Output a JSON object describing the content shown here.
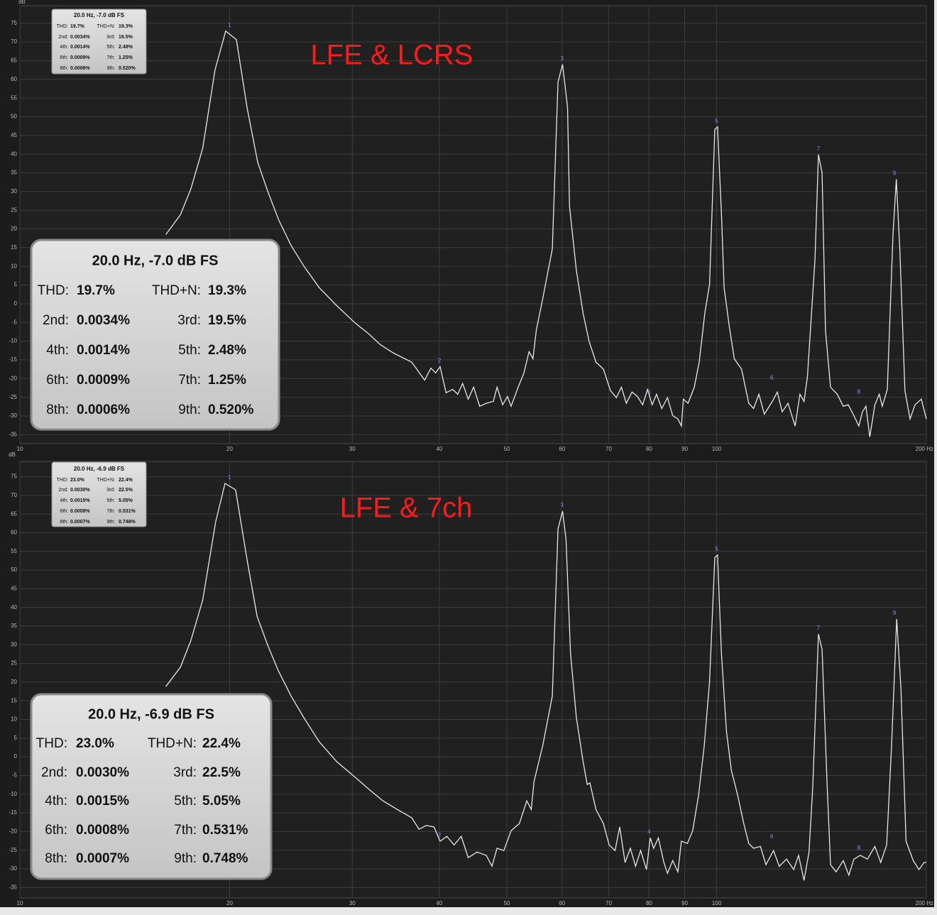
{
  "chart_data": [
    {
      "type": "line",
      "title": "LFE & LCRS",
      "title_color": "#ff1a1a",
      "y_label": "dB",
      "xscale": "log",
      "xlim": [
        10,
        200
      ],
      "ylim": [
        -37.4,
        79.7
      ],
      "grid": true,
      "xticks": [
        10,
        20,
        30,
        40,
        50,
        60,
        70,
        80,
        90,
        100,
        {
          "value": 200,
          "label": "200 Hz"
        }
      ],
      "yticks": [
        -35,
        -30,
        -25,
        -20,
        -15,
        -10,
        -5,
        0,
        5,
        10,
        15,
        20,
        25,
        30,
        35,
        40,
        45,
        50,
        55,
        60,
        65,
        70,
        75
      ],
      "x": [
        16.2,
        17.0,
        17.6,
        18.3,
        19.06,
        19.74,
        20.45,
        21.2,
        21.95,
        22.7,
        23.5,
        24.5,
        25.6,
        26.9,
        28.5,
        30.3,
        31.7,
        32.9,
        34.4,
        36.5,
        38.1,
        38.9,
        39.5,
        40.1,
        40.9,
        41.8,
        42.5,
        43.2,
        44.0,
        44.8,
        45.7,
        46.7,
        47.8,
        48.4,
        49.3,
        50.1,
        50.7,
        51.9,
        52.9,
        53.8,
        54.5,
        55.1,
        56.3,
        58.1,
        59.2,
        60.1,
        61.1,
        61.5,
        62.9,
        64.3,
        65.6,
        67.1,
        68.8,
        70.4,
        71.8,
        73.0,
        74.2,
        75.6,
        77.0,
        78.3,
        79.6,
        80.8,
        82.0,
        83.4,
        85.0,
        86.5,
        88.0,
        89.0,
        89.6,
        91.0,
        92.9,
        94.4,
        96.2,
        97.7,
        99.4,
        100.3,
        101.6,
        102.5,
        104.3,
        106.0,
        108.6,
        111.2,
        113.0,
        115.0,
        117.1,
        120.2,
        122.2,
        124.2,
        126.6,
        129.6,
        131.7,
        133.5,
        135.0,
        138.4,
        140.0,
        141.7,
        143.3,
        145.7,
        149.0,
        152.0,
        154.5,
        157.4,
        160.0,
        161.9,
        163.8,
        165.9,
        168.7,
        171.2,
        172.9,
        175.8,
        179.1,
        181.1,
        183.2,
        186.3,
        189.5,
        192.7,
        196.7,
        200
      ],
      "series": [
        {
          "color": "#e8e8e8",
          "values": [
            18.5,
            23.8,
            30.8,
            41.6,
            62.5,
            72.9,
            70.6,
            52.2,
            37.8,
            29.9,
            22.6,
            15.6,
            9.9,
            4.3,
            -0.5,
            -5.2,
            -8.1,
            -10.9,
            -13.2,
            -15.6,
            -20.4,
            -17.2,
            -18.5,
            -16.8,
            -23.8,
            -22.9,
            -24.2,
            -21.3,
            -25.5,
            -22.3,
            -27.4,
            -26.6,
            -26.1,
            -22.3,
            -27.0,
            -24.8,
            -27.4,
            -22.3,
            -18.5,
            -12.8,
            -14.7,
            -7.1,
            1.4,
            14.7,
            59.3,
            64.0,
            52.6,
            26.1,
            9.0,
            -2.4,
            -10.0,
            -15.6,
            -17.5,
            -23.2,
            -25.1,
            -22.3,
            -26.6,
            -23.6,
            -24.8,
            -27.0,
            -22.9,
            -27.0,
            -24.2,
            -28.0,
            -25.1,
            -29.9,
            -30.8,
            -32.7,
            -25.5,
            -26.6,
            -22.3,
            -15.6,
            -2.4,
            5.2,
            46.6,
            47.3,
            24.2,
            4.3,
            -6.2,
            -14.7,
            -17.5,
            -26.6,
            -28.0,
            -24.2,
            -29.5,
            -26.1,
            -23.6,
            -28.9,
            -26.6,
            -32.7,
            -24.2,
            -26.1,
            -19.4,
            11.8,
            39.9,
            35.0,
            -7.1,
            -22.3,
            -24.2,
            -27.4,
            -27.0,
            -29.9,
            -32.7,
            -28.9,
            -27.4,
            -35.6,
            -27.0,
            -24.2,
            -27.4,
            -22.9,
            18.5,
            33.3,
            14.7,
            -23.2,
            -30.8,
            -27.0,
            -25.5,
            -30.8
          ]
        }
      ],
      "harmonics": {
        "labels": [
          "1",
          "2",
          "3",
          "4",
          "5",
          "6",
          "7",
          "8",
          "9"
        ],
        "x": [
          20,
          40,
          60,
          80,
          100,
          120,
          140,
          160,
          180
        ],
        "y": [
          72.9,
          -16.8,
          64.0,
          -25.3,
          47.3,
          -21.3,
          39.9,
          -25.1,
          33.3
        ],
        "color": "#8a8aff"
      },
      "stats": {
        "header": "20.0 Hz, -7.0 dB FS",
        "rows": [
          [
            "THD:",
            "19.7%",
            "THD+N:",
            "19.3%"
          ],
          [
            "2nd:",
            "0.0034%",
            "3rd:",
            "19.5%"
          ],
          [
            "4th:",
            "0.0014%",
            "5th:",
            "2.48%"
          ],
          [
            "6th:",
            "0.0009%",
            "7th:",
            "1.25%"
          ],
          [
            "8th:",
            "0.0006%",
            "9th:",
            "0.520%"
          ]
        ]
      }
    },
    {
      "type": "line",
      "title": "LFE & 7ch",
      "title_color": "#ff1a1a",
      "y_label": "dB",
      "xscale": "log",
      "xlim": [
        10,
        200
      ],
      "ylim": [
        -37.8,
        79.1
      ],
      "grid": true,
      "xticks": [
        10,
        20,
        30,
        40,
        50,
        60,
        70,
        80,
        90,
        100,
        {
          "value": 200,
          "label": "200 Hz"
        }
      ],
      "yticks": [
        -35,
        -30,
        -25,
        -20,
        -15,
        -10,
        -5,
        0,
        5,
        10,
        15,
        20,
        25,
        30,
        35,
        40,
        45,
        50,
        55,
        60,
        65,
        70,
        75
      ],
      "x": [
        16.2,
        17.0,
        17.6,
        18.3,
        19.1,
        19.7,
        20.4,
        21.2,
        21.9,
        22.7,
        23.5,
        24.5,
        25.6,
        26.9,
        28.5,
        30.3,
        31.7,
        33.2,
        34.8,
        36.5,
        37.4,
        38.3,
        39.3,
        40.1,
        41.0,
        42.0,
        43.0,
        44.0,
        45.3,
        46.7,
        47.6,
        48.4,
        49.5,
        50.7,
        52.1,
        53.4,
        54.2,
        54.7,
        56.3,
        58.1,
        59.2,
        60.1,
        60.8,
        61.7,
        62.9,
        64.3,
        65.2,
        65.8,
        67.1,
        68.8,
        70.1,
        71.5,
        72.6,
        73.9,
        75.2,
        76.5,
        77.8,
        79.3,
        80.3,
        81.2,
        82.5,
        84.0,
        85.0,
        86.5,
        88.0,
        89.0,
        90.8,
        92.4,
        94.2,
        96.0,
        97.7,
        99.4,
        100.3,
        101.6,
        103.3,
        105.0,
        107.2,
        109.4,
        111.2,
        113.0,
        115.6,
        117.7,
        120.7,
        123.0,
        126.0,
        129.0,
        131.1,
        133.5,
        135.7,
        137.4,
        140.0,
        141.7,
        144.0,
        145.7,
        148.4,
        152.0,
        154.8,
        157.4,
        160.8,
        164.6,
        168.7,
        172.0,
        175.4,
        178.3,
        181.3,
        183.9,
        187.0,
        191.5,
        195.2,
        198.5,
        200
      ],
      "series": [
        {
          "color": "#e8e8e8",
          "values": [
            18.8,
            24.0,
            31.2,
            42.0,
            62.9,
            73.2,
            71.5,
            52.5,
            37.6,
            29.7,
            23.0,
            16.3,
            10.3,
            4.0,
            -1.3,
            -5.5,
            -8.7,
            -11.8,
            -14.1,
            -16.3,
            -19.4,
            -18.4,
            -18.8,
            -22.6,
            -21.3,
            -23.6,
            -21.3,
            -27.0,
            -25.5,
            -26.4,
            -29.3,
            -24.5,
            -25.1,
            -19.8,
            -17.9,
            -11.8,
            -14.1,
            -6.5,
            3.0,
            16.3,
            61.0,
            65.8,
            58.2,
            27.8,
            10.6,
            -1.1,
            -7.4,
            -7.0,
            -14.1,
            -17.9,
            -23.6,
            -25.1,
            -18.8,
            -28.3,
            -24.5,
            -29.3,
            -25.1,
            -30.2,
            -21.7,
            -24.5,
            -21.7,
            -28.3,
            -31.2,
            -27.8,
            -30.8,
            -22.6,
            -23.2,
            -19.8,
            -10.3,
            3.0,
            20.2,
            53.4,
            54.0,
            27.8,
            6.8,
            -3.6,
            -10.3,
            -17.9,
            -23.2,
            -24.5,
            -24.0,
            -28.9,
            -25.1,
            -29.3,
            -27.4,
            -30.2,
            -26.4,
            -33.1,
            -25.5,
            -8.0,
            32.9,
            28.7,
            -6.5,
            -28.9,
            -30.8,
            -27.8,
            -31.7,
            -27.4,
            -26.4,
            -27.4,
            -24.0,
            -28.3,
            -23.6,
            3.0,
            36.9,
            18.3,
            -22.6,
            -27.8,
            -30.2,
            -28.3,
            -28.3
          ]
        }
      ],
      "harmonics": {
        "labels": [
          "1",
          "2",
          "3",
          "4",
          "5",
          "6",
          "7",
          "8",
          "9"
        ],
        "x": [
          20,
          40,
          60,
          80,
          100,
          120,
          140,
          160,
          180
        ],
        "y": [
          73.2,
          -22.6,
          65.8,
          -21.7,
          54.0,
          -23.0,
          32.9,
          -26.0,
          36.9
        ],
        "color": "#8a8aff"
      },
      "stats": {
        "header": "20.0 Hz, -6.9 dB FS",
        "rows": [
          [
            "THD:",
            "23.0%",
            "THD+N:",
            "22.4%"
          ],
          [
            "2nd:",
            "0.0030%",
            "3rd:",
            "22.5%"
          ],
          [
            "4th:",
            "0.0015%",
            "5th:",
            "5.05%"
          ],
          [
            "6th:",
            "0.0008%",
            "7th:",
            "0.531%"
          ],
          [
            "8th:",
            "0.0007%",
            "9th:",
            "0.748%"
          ]
        ]
      }
    }
  ]
}
